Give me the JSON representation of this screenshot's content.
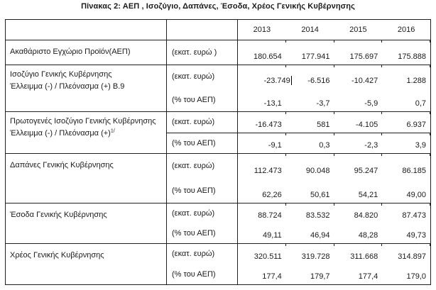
{
  "title": "Πίνακας 2: ΑΕΠ , Ισοζύγιο, Δαπάνες, Έσοδα, Χρέος Γενικής Κυβέρνησης",
  "table": {
    "years": [
      "2013",
      "2014",
      "2015",
      "2016"
    ],
    "rows": [
      {
        "label_lines": [
          "Ακαθάριστο Εγχώριο Προϊόν(ΑΕΠ)"
        ],
        "subs": [
          {
            "unit": "(εκατ. ευρώ )",
            "values": [
              "180.654",
              "177.941",
              "175.697",
              "175.888"
            ]
          }
        ]
      },
      {
        "label_lines": [
          "Ισοζύγιο Γενικής Κυβέρνησης",
          "Έλλειμμα (-) / Πλεόνασμα (+) B.9"
        ],
        "subs": [
          {
            "unit": "(εκατ. ευρώ)",
            "values": [
              "-23.749",
              "-6.516",
              "-10.427",
              "1.288"
            ],
            "has_text_cursor": true
          },
          {
            "unit": "(% του ΑΕΠ)",
            "values": [
              "-13,1",
              "-3,7",
              "-5,9",
              "0,7"
            ]
          }
        ]
      },
      {
        "label_lines": [
          "Πρωτογενές Ισοζύγιο Γενικής Κυβέρνησης",
          "Έλλειμμα (-) / Πλεόνασμα (+)"
        ],
        "label_superscript": "1/",
        "subs": [
          {
            "unit": "(εκατ. ευρώ)",
            "values": [
              "-16.473",
              "581",
              "-4.105",
              "6.937"
            ]
          },
          {
            "unit": "(% του ΑΕΠ)",
            "values": [
              "-9,1",
              "0,3",
              "-2,3",
              "3,9"
            ]
          }
        ]
      },
      {
        "label_lines": [
          "Δαπάνες Γενικής Κυβέρνησης"
        ],
        "subs": [
          {
            "unit": "(εκατ. ευρώ)",
            "values": [
              "112.473",
              "90.048",
              "95.247",
              "86.185"
            ]
          },
          {
            "unit": "(% του ΑΕΠ)",
            "values": [
              "62,26",
              "50,61",
              "54,21",
              "49,00"
            ]
          }
        ]
      },
      {
        "label_lines": [
          "Έσοδα Γενικής Κυβέρνησης"
        ],
        "subs": [
          {
            "unit": "(εκατ. ευρώ)",
            "values": [
              "88.724",
              "83.532",
              "84.820",
              "87.473"
            ]
          },
          {
            "unit": "(% του ΑΕΠ)",
            "values": [
              "49,11",
              "46,94",
              "48,28",
              "49,73"
            ]
          }
        ]
      },
      {
        "label_lines": [
          "Χρέος Γενικής Κυβέρνησης"
        ],
        "subs": [
          {
            "unit": "(εκατ. ευρώ)",
            "values": [
              "320.511",
              "319.728",
              "311.668",
              "314.897"
            ]
          },
          {
            "unit": "(% του ΑΕΠ)",
            "values": [
              "177,4",
              "179,7",
              "177,4",
              "179,0"
            ]
          }
        ]
      }
    ]
  }
}
